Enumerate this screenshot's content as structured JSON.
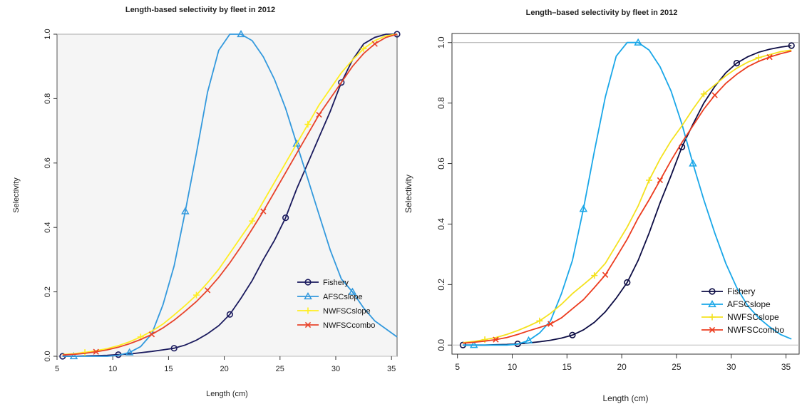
{
  "chart_data": [
    {
      "type": "line",
      "panel": "left",
      "title": "Length-based selectivity by fleet in 2012",
      "xlabel": "Length (cm)",
      "ylabel": "Selectivity",
      "xlim": [
        5,
        35.5
      ],
      "ylim": [
        0,
        1
      ],
      "xticks": [
        5,
        10,
        15,
        20,
        25,
        30,
        35
      ],
      "yticks": [
        0.0,
        0.2,
        0.4,
        0.6,
        0.8,
        1.0
      ],
      "ytick_labels": [
        "0.0",
        "0.2",
        "0.4",
        "0.6",
        "0.8",
        "1.0"
      ],
      "reference_line": 1.0,
      "legend_position": "bottom-right",
      "x": [
        5.5,
        6.5,
        7.5,
        8.5,
        9.5,
        10.5,
        11.5,
        12.5,
        13.5,
        14.5,
        15.5,
        16.5,
        17.5,
        18.5,
        19.5,
        20.5,
        21.5,
        22.5,
        23.5,
        24.5,
        25.5,
        26.5,
        27.5,
        28.5,
        29.5,
        30.5,
        31.5,
        32.5,
        33.5,
        34.5,
        35.5
      ],
      "series": [
        {
          "name": "Fishery",
          "color": "#1a1a5e",
          "marker": "circle",
          "marker_x": [
            5.5,
            10.5,
            15.5,
            20.5,
            25.5,
            30.5,
            35.5
          ],
          "values": [
            0.0,
            0.0,
            0.001,
            0.002,
            0.003,
            0.005,
            0.007,
            0.011,
            0.015,
            0.02,
            0.025,
            0.035,
            0.05,
            0.07,
            0.095,
            0.13,
            0.18,
            0.235,
            0.3,
            0.36,
            0.43,
            0.52,
            0.6,
            0.68,
            0.76,
            0.85,
            0.92,
            0.97,
            0.99,
            1.0,
            1.0
          ]
        },
        {
          "name": "AFSCslope",
          "color": "#3399dd",
          "marker": "triangle",
          "marker_x": [
            6.5,
            11.5,
            16.5,
            21.5,
            26.5,
            31.5
          ],
          "values": [
            0.0,
            0.0,
            0.0,
            0.0,
            0.0,
            0.003,
            0.012,
            0.03,
            0.07,
            0.16,
            0.28,
            0.45,
            0.63,
            0.82,
            0.95,
            1.0,
            1.0,
            0.98,
            0.93,
            0.86,
            0.77,
            0.66,
            0.55,
            0.44,
            0.33,
            0.24,
            0.2,
            0.15,
            0.11,
            0.085,
            0.06
          ]
        },
        {
          "name": "NWFSCslope",
          "color": "#ffee22",
          "marker": "plus",
          "marker_x": [
            7.5,
            12.5,
            17.5,
            22.5,
            27.5,
            32.5
          ],
          "values": [
            0.005,
            0.008,
            0.012,
            0.017,
            0.024,
            0.033,
            0.045,
            0.06,
            0.078,
            0.1,
            0.128,
            0.158,
            0.19,
            0.228,
            0.27,
            0.32,
            0.37,
            0.42,
            0.48,
            0.54,
            0.6,
            0.66,
            0.72,
            0.78,
            0.83,
            0.88,
            0.92,
            0.955,
            0.98,
            0.995,
            1.0
          ]
        },
        {
          "name": "NWFSCcombo",
          "color": "#e8432a",
          "marker": "x",
          "marker_x": [
            8.5,
            13.5,
            18.5,
            23.5,
            28.5,
            33.5
          ],
          "values": [
            0.004,
            0.006,
            0.009,
            0.014,
            0.02,
            0.028,
            0.039,
            0.052,
            0.068,
            0.088,
            0.112,
            0.14,
            0.17,
            0.205,
            0.245,
            0.29,
            0.34,
            0.395,
            0.45,
            0.51,
            0.57,
            0.63,
            0.69,
            0.75,
            0.8,
            0.85,
            0.9,
            0.94,
            0.97,
            0.99,
            1.0
          ]
        }
      ]
    },
    {
      "type": "line",
      "panel": "right",
      "title": "Length–based selectivity by fleet in 2012",
      "xlabel": "Length (cm)",
      "ylabel": "Selectivity",
      "xlim": [
        4.5,
        36.2
      ],
      "ylim": [
        -0.03,
        1.03
      ],
      "xticks": [
        5,
        10,
        15,
        20,
        25,
        30,
        35
      ],
      "yticks": [
        0.0,
        0.2,
        0.4,
        0.6,
        0.8,
        1.0
      ],
      "ytick_labels": [
        "0.0",
        "0.2",
        "0.4",
        "0.6",
        "0.8",
        "1.0"
      ],
      "reference_line": 1.0,
      "legend_position": "bottom-right",
      "x": [
        5.5,
        6.5,
        7.5,
        8.5,
        9.5,
        10.5,
        11.5,
        12.5,
        13.5,
        14.5,
        15.5,
        16.5,
        17.5,
        18.5,
        19.5,
        20.5,
        21.5,
        22.5,
        23.5,
        24.5,
        25.5,
        26.5,
        27.5,
        28.5,
        29.5,
        30.5,
        31.5,
        32.5,
        33.5,
        34.5,
        35.5
      ],
      "series": [
        {
          "name": "Fishery",
          "color": "#0d0d45",
          "marker": "circle",
          "marker_x": [
            5.5,
            10.5,
            15.5,
            20.5,
            25.5,
            30.5,
            35.5
          ],
          "values": [
            0.0,
            0.0,
            0.0,
            0.001,
            0.002,
            0.004,
            0.007,
            0.011,
            0.016,
            0.023,
            0.033,
            0.05,
            0.075,
            0.11,
            0.155,
            0.207,
            0.28,
            0.37,
            0.47,
            0.56,
            0.655,
            0.73,
            0.8,
            0.855,
            0.9,
            0.932,
            0.953,
            0.968,
            0.978,
            0.985,
            0.99
          ]
        },
        {
          "name": "AFSCslope",
          "color": "#1aa7e8",
          "marker": "triangle",
          "marker_x": [
            6.5,
            11.5,
            16.5,
            21.5,
            26.5
          ],
          "values": [
            0.0,
            0.0,
            0.0,
            0.0,
            0.0,
            0.003,
            0.015,
            0.04,
            0.08,
            0.17,
            0.28,
            0.45,
            0.64,
            0.82,
            0.955,
            1.0,
            1.0,
            0.975,
            0.92,
            0.84,
            0.73,
            0.6,
            0.48,
            0.37,
            0.27,
            0.19,
            0.13,
            0.09,
            0.06,
            0.035,
            0.02
          ]
        },
        {
          "name": "NWFSCslope",
          "color": "#f4e21e",
          "marker": "plus",
          "marker_x": [
            7.5,
            12.5,
            17.5,
            22.5,
            27.5,
            32.5
          ],
          "values": [
            0.008,
            0.012,
            0.018,
            0.025,
            0.035,
            0.048,
            0.063,
            0.08,
            0.105,
            0.135,
            0.17,
            0.2,
            0.23,
            0.27,
            0.33,
            0.39,
            0.46,
            0.545,
            0.615,
            0.675,
            0.725,
            0.78,
            0.83,
            0.86,
            0.89,
            0.915,
            0.935,
            0.95,
            0.96,
            0.97,
            0.975
          ]
        },
        {
          "name": "NWFSCcombo",
          "color": "#ec3c1f",
          "marker": "x",
          "marker_x": [
            8.5,
            13.5,
            18.5,
            23.5,
            28.5,
            33.5
          ],
          "values": [
            0.006,
            0.009,
            0.013,
            0.018,
            0.025,
            0.035,
            0.047,
            0.058,
            0.07,
            0.09,
            0.12,
            0.15,
            0.19,
            0.232,
            0.29,
            0.35,
            0.42,
            0.48,
            0.545,
            0.61,
            0.67,
            0.725,
            0.78,
            0.826,
            0.865,
            0.895,
            0.92,
            0.938,
            0.952,
            0.963,
            0.972
          ]
        }
      ]
    }
  ]
}
